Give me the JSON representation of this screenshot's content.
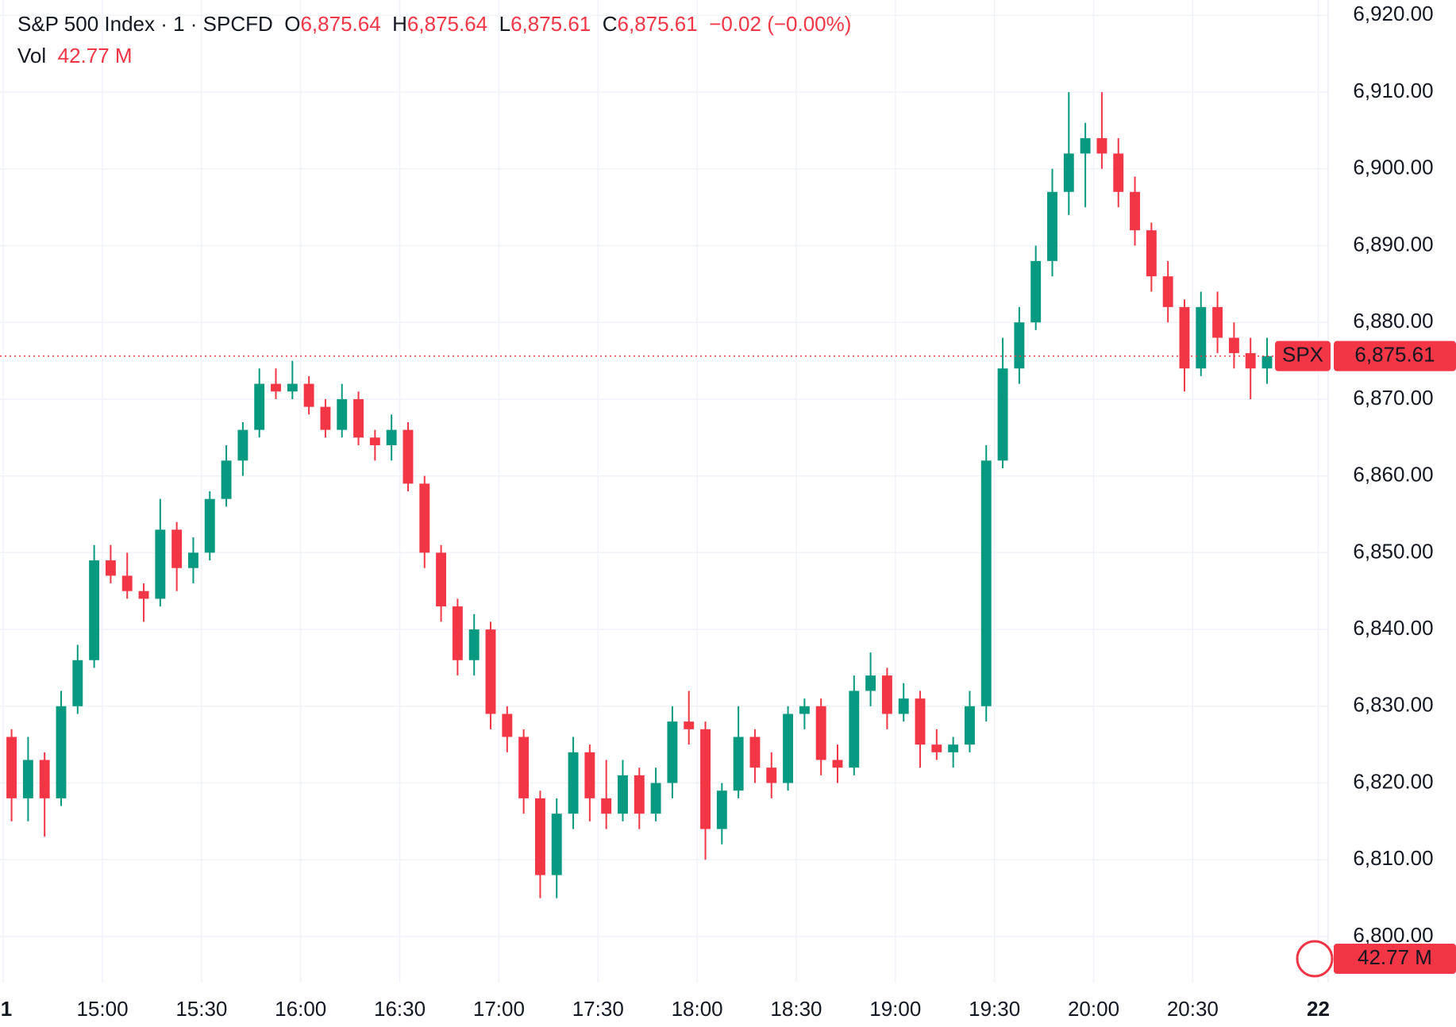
{
  "chart_data": {
    "type": "candlestick",
    "title": "S&P 500 Index · 1 · SPCFD",
    "legend_values": {
      "open_label": "O",
      "open": "6,875.64",
      "high_label": "H",
      "high": "6,875.64",
      "low_label": "L",
      "low": "6,875.61",
      "close_label": "C",
      "close": "6,875.61",
      "change": "−0.02 (−0.00%)",
      "volume_label": "Vol",
      "volume": "42.77 M"
    },
    "symbol": "SPX",
    "last_price_label": "6,875.61",
    "volume_badge": "42.77 M",
    "up_color": "#089981",
    "down_color": "#f23645",
    "grid": true,
    "x": [
      "14:30",
      "14:35",
      "14:40",
      "14:45",
      "14:50",
      "14:55",
      "15:00",
      "15:05",
      "15:10",
      "15:15",
      "15:20",
      "15:25",
      "15:30",
      "15:35",
      "15:40",
      "15:45",
      "15:50",
      "15:55",
      "16:00",
      "16:05",
      "16:10",
      "16:15",
      "16:20",
      "16:25",
      "16:30",
      "16:35",
      "16:40",
      "16:45",
      "16:50",
      "16:55",
      "17:00",
      "17:05",
      "17:10",
      "17:15",
      "17:20",
      "17:25",
      "17:30",
      "17:35",
      "17:40",
      "17:45",
      "17:50",
      "17:55",
      "18:00",
      "18:05",
      "18:10",
      "18:15",
      "18:20",
      "18:25",
      "18:30",
      "18:35",
      "18:40",
      "18:45",
      "18:50",
      "18:55",
      "19:00",
      "19:05",
      "19:10",
      "19:15",
      "19:20",
      "19:25",
      "19:30",
      "19:35",
      "19:40",
      "19:45",
      "19:50",
      "19:55",
      "20:00",
      "20:05",
      "20:10",
      "20:15",
      "20:20",
      "20:25",
      "20:30",
      "20:35",
      "20:40",
      "20:45",
      "20:50"
    ],
    "open": [
      6826,
      6818,
      6823,
      6818,
      6830,
      6836,
      6849,
      6847,
      6845,
      6844,
      6853,
      6848,
      6850,
      6857,
      6862,
      6866,
      6872,
      6871,
      6872,
      6869,
      6866,
      6870,
      6865,
      6864,
      6866,
      6859,
      6850,
      6843,
      6836,
      6840,
      6829,
      6826,
      6818,
      6808,
      6816,
      6824,
      6818,
      6816,
      6821,
      6816,
      6820,
      6828,
      6827,
      6814,
      6819,
      6826,
      6822,
      6820,
      6829,
      6830,
      6823,
      6822,
      6832,
      6834,
      6829,
      6831,
      6825,
      6824,
      6825,
      6830,
      6862,
      6874,
      6880,
      6888,
      6897,
      6902,
      6904,
      6902,
      6897,
      6892,
      6886,
      6882,
      6874,
      6882,
      6878,
      6876,
      6874
    ],
    "high": [
      6827,
      6826,
      6824,
      6832,
      6838,
      6851,
      6851,
      6850,
      6846,
      6857,
      6854,
      6852,
      6858,
      6864,
      6867,
      6874,
      6874,
      6875,
      6873,
      6870,
      6872,
      6871,
      6866,
      6868,
      6867,
      6860,
      6851,
      6844,
      6842,
      6841,
      6830,
      6827,
      6819,
      6818,
      6826,
      6825,
      6823,
      6823,
      6822,
      6822,
      6830,
      6832,
      6828,
      6820,
      6830,
      6827,
      6824,
      6830,
      6831,
      6831,
      6825,
      6834,
      6837,
      6835,
      6833,
      6832,
      6827,
      6826,
      6832,
      6864,
      6878,
      6882,
      6890,
      6900,
      6910,
      6906,
      6910,
      6904,
      6899,
      6893,
      6888,
      6883,
      6884,
      6884,
      6880,
      6878,
      6878
    ],
    "low": [
      6815,
      6815,
      6813,
      6817,
      6829,
      6835,
      6846,
      6844,
      6841,
      6843,
      6845,
      6846,
      6849,
      6856,
      6860,
      6865,
      6870,
      6870,
      6868,
      6865,
      6865,
      6864,
      6862,
      6862,
      6858,
      6848,
      6841,
      6834,
      6834,
      6827,
      6824,
      6816,
      6805,
      6805,
      6814,
      6815,
      6814,
      6815,
      6814,
      6815,
      6818,
      6825,
      6810,
      6812,
      6818,
      6820,
      6818,
      6819,
      6827,
      6821,
      6820,
      6821,
      6830,
      6827,
      6828,
      6822,
      6823,
      6822,
      6824,
      6828,
      6861,
      6872,
      6879,
      6886,
      6894,
      6895,
      6900,
      6895,
      6890,
      6884,
      6880,
      6871,
      6873,
      6876,
      6874,
      6870,
      6872
    ],
    "close": [
      6818,
      6823,
      6818,
      6830,
      6836,
      6849,
      6847,
      6845,
      6844,
      6853,
      6848,
      6850,
      6857,
      6862,
      6866,
      6872,
      6871,
      6872,
      6869,
      6866,
      6870,
      6865,
      6864,
      6866,
      6859,
      6850,
      6843,
      6836,
      6840,
      6829,
      6826,
      6818,
      6808,
      6816,
      6824,
      6818,
      6816,
      6821,
      6816,
      6820,
      6828,
      6827,
      6814,
      6819,
      6826,
      6822,
      6820,
      6829,
      6830,
      6823,
      6822,
      6832,
      6834,
      6829,
      6831,
      6825,
      6824,
      6825,
      6830,
      6862,
      6874,
      6880,
      6888,
      6897,
      6902,
      6904,
      6902,
      6897,
      6892,
      6886,
      6882,
      6874,
      6882,
      6878,
      6876,
      6874,
      6875.61
    ],
    "xlim": [
      "14:29",
      "21:11"
    ],
    "xticks": [
      {
        "value": "14:30",
        "label": "1"
      },
      "15:00",
      "15:30",
      "16:00",
      "16:30",
      "17:00",
      "17:30",
      "18:00",
      "18:30",
      "19:00",
      "19:30",
      "20:00",
      "20:30",
      {
        "value": "21:08",
        "label": "22"
      }
    ],
    "ylim": [
      6794,
      6922
    ],
    "yticks": [
      {
        "value": 6800,
        "label": "6,800.00"
      },
      {
        "value": 6810,
        "label": "6,810.00"
      },
      {
        "value": 6820,
        "label": "6,820.00"
      },
      {
        "value": 6830,
        "label": "6,830.00"
      },
      {
        "value": 6840,
        "label": "6,840.00"
      },
      {
        "value": 6850,
        "label": "6,850.00"
      },
      {
        "value": 6860,
        "label": "6,860.00"
      },
      {
        "value": 6870,
        "label": "6,870.00"
      },
      {
        "value": 6880,
        "label": "6,880.00"
      },
      {
        "value": 6890,
        "label": "6,890.00"
      },
      {
        "value": 6900,
        "label": "6,900.00"
      },
      {
        "value": 6910,
        "label": "6,910.00"
      },
      {
        "value": 6920,
        "label": "6,920.00"
      }
    ]
  }
}
